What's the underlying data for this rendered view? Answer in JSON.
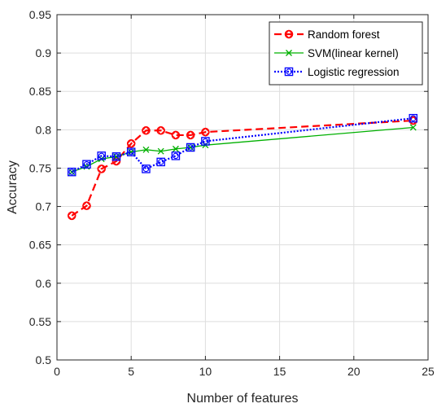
{
  "chart_data": {
    "type": "line",
    "xlabel": "Number of features",
    "ylabel": "Accuracy",
    "xlim": [
      0,
      25
    ],
    "ylim": [
      0.5,
      0.95
    ],
    "xticks": [
      0,
      5,
      10,
      15,
      20,
      25
    ],
    "yticks": [
      0.5,
      0.55,
      0.6,
      0.65,
      0.7,
      0.75,
      0.8,
      0.85,
      0.9,
      0.95
    ],
    "grid": true,
    "legend_position": "top-right",
    "series": [
      {
        "name": "Random forest",
        "color": "#ff0000",
        "line_style": "dashed",
        "marker": "circle-diamond",
        "x": [
          1,
          2,
          3,
          4,
          5,
          6,
          7,
          8,
          9,
          10,
          24
        ],
        "y": [
          0.688,
          0.701,
          0.749,
          0.759,
          0.782,
          0.799,
          0.799,
          0.793,
          0.793,
          0.797,
          0.812
        ]
      },
      {
        "name": "SVM(linear kernel)",
        "color": "#00b000",
        "line_style": "solid",
        "marker": "x",
        "x": [
          1,
          2,
          3,
          4,
          5,
          6,
          7,
          8,
          9,
          10,
          24
        ],
        "y": [
          0.745,
          0.752,
          0.762,
          0.765,
          0.771,
          0.774,
          0.772,
          0.775,
          0.777,
          0.78,
          0.803
        ]
      },
      {
        "name": "Logistic regression",
        "color": "#0000ff",
        "line_style": "dotted",
        "marker": "square-circle",
        "x": [
          1,
          2,
          3,
          4,
          5,
          6,
          7,
          8,
          9,
          10,
          24
        ],
        "y": [
          0.745,
          0.755,
          0.766,
          0.765,
          0.771,
          0.749,
          0.758,
          0.766,
          0.777,
          0.785,
          0.815
        ]
      }
    ]
  }
}
